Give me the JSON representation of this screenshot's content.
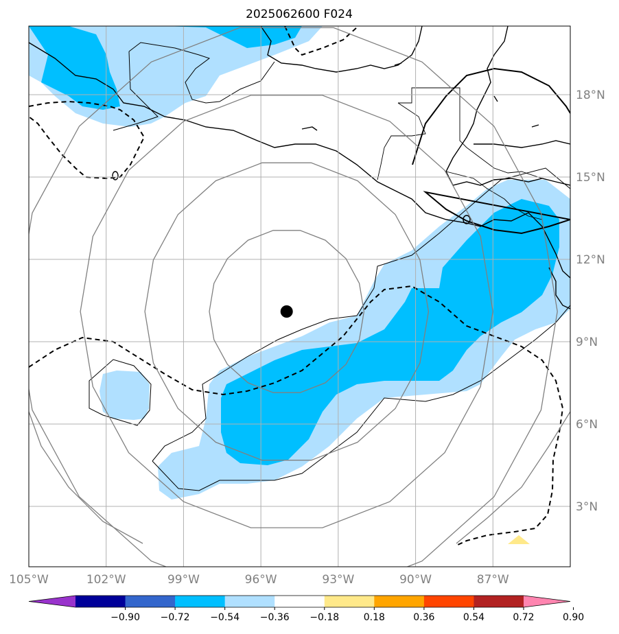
{
  "title": "2025062600 F024",
  "map": {
    "lon_range": [
      -105,
      -84
    ],
    "lat_range": [
      0.8,
      20.5
    ],
    "gridline_color": "#b0b0b0",
    "center_marker": {
      "lon": -95.0,
      "lat": 10.1
    },
    "lat_ticks": [
      {
        "value": 3,
        "label": "3°N"
      },
      {
        "value": 6,
        "label": "6°N"
      },
      {
        "value": 9,
        "label": "9°N"
      },
      {
        "value": 12,
        "label": "12°N"
      },
      {
        "value": 15,
        "label": "15°N"
      },
      {
        "value": 18,
        "label": "18°N"
      }
    ],
    "lon_ticks": [
      {
        "value": -105,
        "label": "105°W"
      },
      {
        "value": -102,
        "label": "102°W"
      },
      {
        "value": -99,
        "label": "99°W"
      },
      {
        "value": -96,
        "label": "96°W"
      },
      {
        "value": -93,
        "label": "93°W"
      },
      {
        "value": -90,
        "label": "90°W"
      },
      {
        "value": -87,
        "label": "87°W"
      }
    ],
    "range_ring_color": "#808080",
    "range_rings_deg": [
      3,
      5.5,
      8,
      10.5
    ]
  },
  "colorbar": {
    "levels": [
      "−0.90",
      "−0.72",
      "−0.54",
      "−0.36",
      "−0.18",
      "0.18",
      "0.36",
      "0.54",
      "0.72",
      "0.90"
    ],
    "colors": [
      "#9933cc",
      "#000099",
      "#3366cc",
      "#00bfff",
      "#b0e0ff",
      "#ffffff",
      "#ffe98a",
      "#ffa500",
      "#ff4500",
      "#b22222",
      "#ff85b0"
    ]
  }
}
